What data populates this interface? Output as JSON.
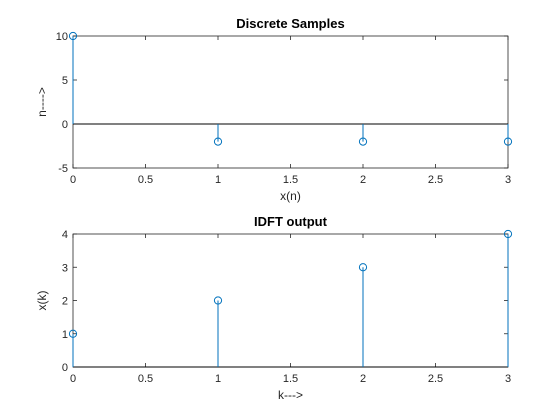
{
  "chart_data": [
    {
      "type": "stem",
      "title": "Discrete Samples",
      "xlabel": "x(n)",
      "ylabel": "n---->",
      "xlim": [
        0,
        3
      ],
      "ylim": [
        -5,
        10
      ],
      "xticks": [
        0,
        0.5,
        1,
        1.5,
        2,
        2.5,
        3
      ],
      "xtick_labels": [
        "0",
        "0.5",
        "1",
        "1.5",
        "2",
        "2.5",
        "3"
      ],
      "yticks": [
        -5,
        0,
        5,
        10
      ],
      "ytick_labels": [
        "-5",
        "0",
        "5",
        "10"
      ],
      "baseline": 0,
      "series": [
        {
          "x": [
            0,
            1,
            2,
            3
          ],
          "y": [
            10,
            -2,
            -2,
            -2
          ],
          "color": "#0072bd"
        }
      ]
    },
    {
      "type": "stem",
      "title": "IDFT output",
      "xlabel": "k--->",
      "ylabel": "x(k)",
      "xlim": [
        0,
        3
      ],
      "ylim": [
        0,
        4
      ],
      "xticks": [
        0,
        0.5,
        1,
        1.5,
        2,
        2.5,
        3
      ],
      "xtick_labels": [
        "0",
        "0.5",
        "1",
        "1.5",
        "2",
        "2.5",
        "3"
      ],
      "yticks": [
        0,
        1,
        2,
        3,
        4
      ],
      "ytick_labels": [
        "0",
        "1",
        "2",
        "3",
        "4"
      ],
      "baseline": 0,
      "series": [
        {
          "x": [
            0,
            1,
            2,
            3
          ],
          "y": [
            1,
            2,
            3,
            4
          ],
          "color": "#0072bd"
        }
      ]
    }
  ]
}
